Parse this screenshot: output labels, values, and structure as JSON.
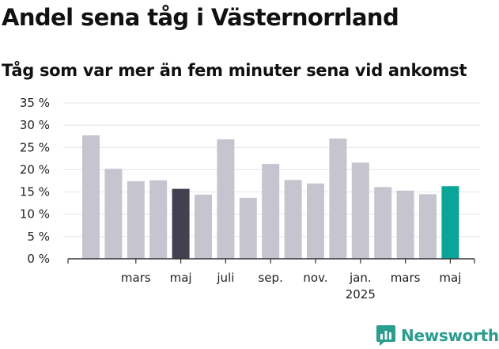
{
  "title": "Andel sena tåg i Västernorrland",
  "subtitle": "Tåg som var mer än fem minuter sena vid ankomst",
  "brand": {
    "name": "Newsworthy",
    "icon": "newsworthy-logo-icon",
    "color": "#2a9d8f"
  },
  "chart_data": {
    "type": "bar",
    "title": "Andel sena tåg i Västernorrland",
    "subtitle": "Tåg som var mer än fem minuter sena vid ankomst",
    "xlabel": "",
    "ylabel": "",
    "ylim": [
      0,
      35
    ],
    "yticks": [
      "0 %",
      "5 %",
      "10 %",
      "15 %",
      "20 %",
      "25 %",
      "30 %",
      "35 %"
    ],
    "grid": true,
    "x_tick_labels": [
      {
        "label": "mars",
        "sublabel": "",
        "index": 2
      },
      {
        "label": "maj",
        "sublabel": "",
        "index": 4
      },
      {
        "label": "juli",
        "sublabel": "",
        "index": 6
      },
      {
        "label": "sep.",
        "sublabel": "",
        "index": 8
      },
      {
        "label": "nov.",
        "sublabel": "",
        "index": 10
      },
      {
        "label": "jan.",
        "sublabel": "2025",
        "index": 12
      },
      {
        "label": "mars",
        "sublabel": "",
        "index": 14
      },
      {
        "label": "maj",
        "sublabel": "",
        "index": 16
      }
    ],
    "values": [
      27.7,
      20.2,
      17.4,
      17.6,
      15.7,
      14.4,
      26.8,
      13.7,
      21.3,
      17.7,
      16.9,
      27.0,
      21.6,
      16.1,
      15.3,
      14.5,
      16.3
    ],
    "colors": {
      "default": "#c6c4cf",
      "highlight": "#434050",
      "latest": "#0aa596"
    },
    "highlight_index": 4,
    "latest_index": 16
  }
}
